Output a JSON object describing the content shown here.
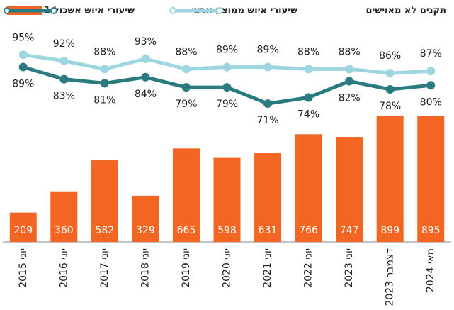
{
  "chart_data": {
    "type": "bar+line",
    "categories": [
      "יוני 2015",
      "יוני 2016",
      "יוני 2017",
      "יוני 2018",
      "יוני 2019",
      "יוני 2020",
      "יוני 2021",
      "יוני 2022",
      "יוני 2023",
      "דצמבר 2023",
      "מאי 2024"
    ],
    "series": [
      {
        "name": "תקנים לא מאוישים",
        "type": "bar",
        "color": "#f26522",
        "values": [
          209,
          360,
          582,
          329,
          665,
          598,
          631,
          766,
          747,
          899,
          895
        ]
      },
      {
        "name": "שיעורי איוש ממוצע ארצי",
        "type": "line",
        "axis": "y2",
        "color": "#9dd6e0",
        "values": [
          95,
          92,
          88,
          93,
          88,
          89,
          89,
          88,
          88,
          86,
          87
        ],
        "value_labels": [
          "95%",
          "92%",
          "88%",
          "93%",
          "88%",
          "89%",
          "89%",
          "88%",
          "88%",
          "86%",
          "87%"
        ]
      },
      {
        "name": "שיעורי איוש אשכול 1",
        "type": "line",
        "axis": "y2",
        "color": "#2a7b7f",
        "values": [
          89,
          83,
          81,
          84,
          79,
          79,
          71,
          74,
          82,
          78,
          80
        ],
        "value_labels": [
          "89%",
          "83%",
          "81%",
          "84%",
          "79%",
          "79%",
          "71%",
          "74%",
          "82%",
          "78%",
          "80%"
        ]
      }
    ],
    "ylim": [
      0,
      1520
    ],
    "y2lim": [
      3,
      108
    ]
  }
}
